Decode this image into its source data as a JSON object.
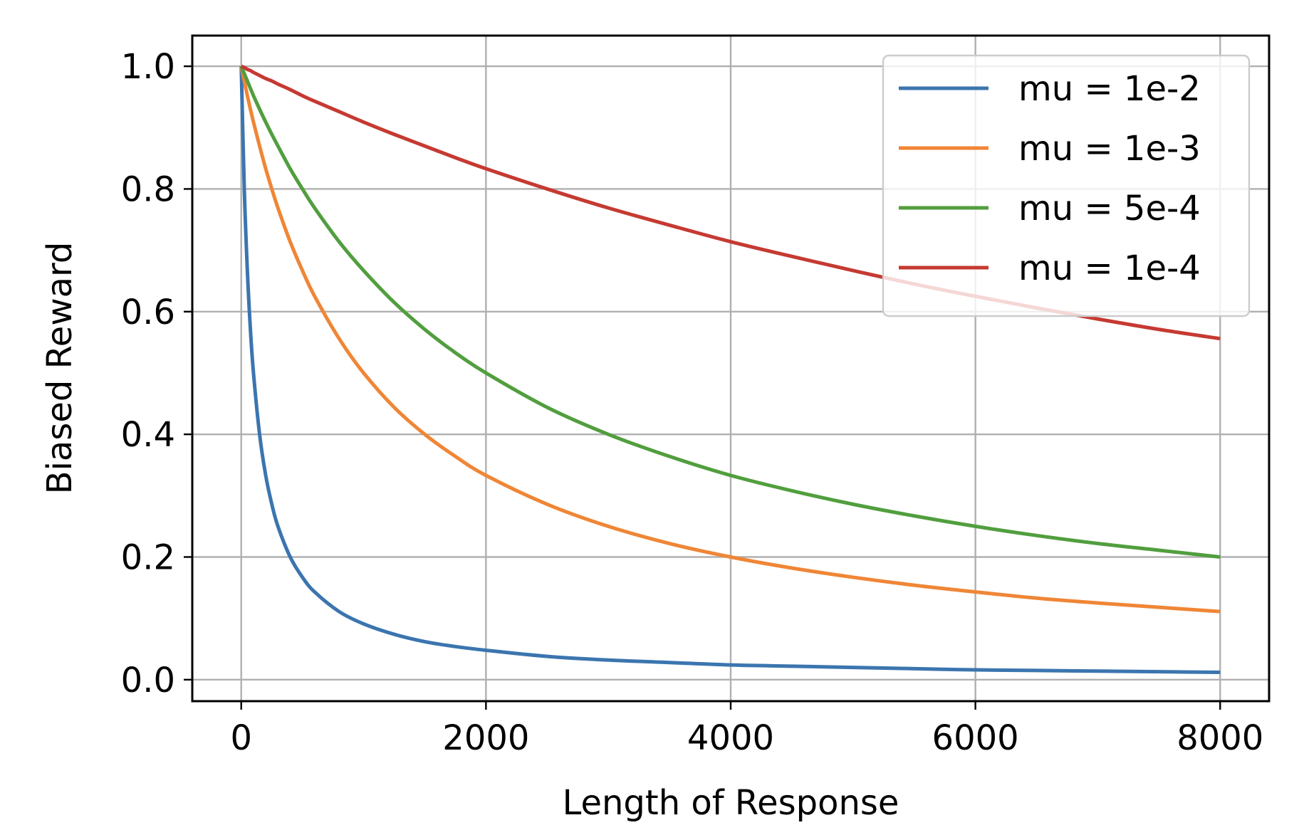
{
  "chart_data": {
    "type": "line",
    "title": "",
    "xlabel": "Length of Response",
    "ylabel": "Biased Reward",
    "xlim": [
      -400,
      8400
    ],
    "ylim": [
      -0.035,
      1.05
    ],
    "xticks": [
      0,
      2000,
      4000,
      6000,
      8000
    ],
    "xtick_labels": [
      "0",
      "2000",
      "4000",
      "6000",
      "8000"
    ],
    "yticks": [
      0.0,
      0.2,
      0.4,
      0.6,
      0.8,
      1.0
    ],
    "ytick_labels": [
      "0.0",
      "0.2",
      "0.4",
      "0.6",
      "0.8",
      "1.0"
    ],
    "grid": true,
    "legend_position": "top-right",
    "x": [
      0,
      25,
      50,
      75,
      100,
      150,
      200,
      250,
      300,
      400,
      500,
      600,
      800,
      1000,
      1250,
      1500,
      1750,
      2000,
      2500,
      3000,
      3500,
      4000,
      4500,
      5000,
      5500,
      6000,
      6500,
      7000,
      7500,
      8000
    ],
    "series": [
      {
        "name": "mu = 1e-2",
        "color": "#3b75af",
        "values": [
          1.0,
          0.8,
          0.667,
          0.571,
          0.5,
          0.4,
          0.333,
          0.286,
          0.25,
          0.2,
          0.167,
          0.143,
          0.111,
          0.091,
          0.074,
          0.062,
          0.054,
          0.048,
          0.038,
          0.032,
          0.028,
          0.024,
          0.022,
          0.02,
          0.018,
          0.016,
          0.015,
          0.014,
          0.013,
          0.012
        ]
      },
      {
        "name": "mu = 1e-3",
        "color": "#ef8636",
        "values": [
          1.0,
          0.976,
          0.952,
          0.93,
          0.909,
          0.87,
          0.833,
          0.8,
          0.769,
          0.714,
          0.667,
          0.625,
          0.556,
          0.5,
          0.444,
          0.4,
          0.364,
          0.333,
          0.286,
          0.25,
          0.222,
          0.2,
          0.182,
          0.167,
          0.154,
          0.143,
          0.133,
          0.125,
          0.118,
          0.111
        ]
      },
      {
        "name": "mu = 5e-4",
        "color": "#519e3e",
        "values": [
          1.0,
          0.988,
          0.976,
          0.964,
          0.952,
          0.93,
          0.909,
          0.889,
          0.87,
          0.833,
          0.8,
          0.769,
          0.714,
          0.667,
          0.615,
          0.571,
          0.533,
          0.5,
          0.444,
          0.4,
          0.364,
          0.333,
          0.308,
          0.286,
          0.267,
          0.25,
          0.235,
          0.222,
          0.211,
          0.2
        ]
      },
      {
        "name": "mu = 1e-4",
        "color": "#c53a32",
        "values": [
          1.0,
          0.998,
          0.995,
          0.993,
          0.99,
          0.985,
          0.98,
          0.976,
          0.971,
          0.962,
          0.952,
          0.943,
          0.926,
          0.909,
          0.889,
          0.87,
          0.851,
          0.833,
          0.8,
          0.769,
          0.741,
          0.714,
          0.69,
          0.667,
          0.645,
          0.625,
          0.606,
          0.588,
          0.571,
          0.556
        ]
      }
    ]
  }
}
